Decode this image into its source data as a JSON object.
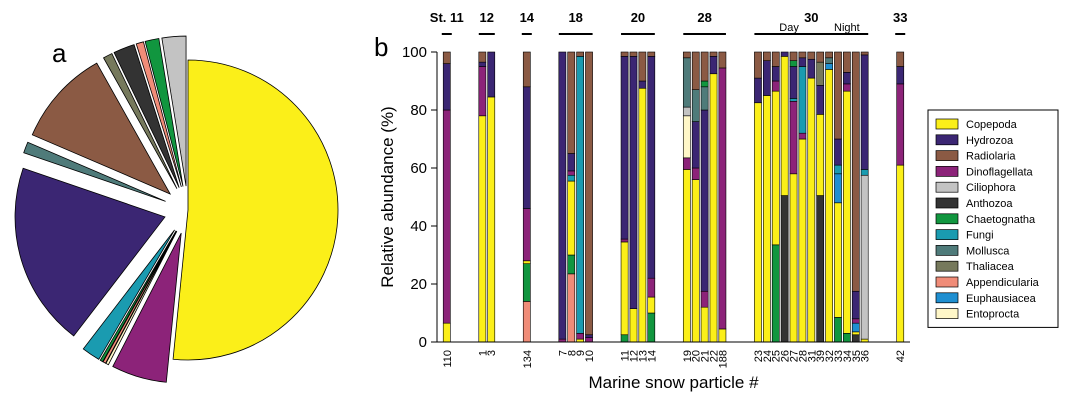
{
  "panels": {
    "a": "a",
    "b": "b"
  },
  "colors": {
    "Copepoda": "#fbef19",
    "Hydrozoa": "#3b2673",
    "Radiolaria": "#8b5a44",
    "Dinoflagellata": "#8c2379",
    "Ciliophora": "#c3c3c3",
    "Anthozoa": "#333333",
    "Chaetognatha": "#11963f",
    "Fungi": "#1a9bb0",
    "Mollusca": "#4f7b7a",
    "Thaliacea": "#76795c",
    "Appendicularia": "#f08c78",
    "Euphausiacea": "#1f8fd1",
    "Entoprocta": "#fff7c8"
  },
  "chart_data": [
    {
      "type": "pie",
      "panel": "a",
      "slices": [
        {
          "name": "Copepoda",
          "value": 52.0
        },
        {
          "name": "Dinoflagellata",
          "value": 6.0
        },
        {
          "name": "Entoprocta",
          "value": 0.3
        },
        {
          "name": "Appendicularia",
          "value": 0.3
        },
        {
          "name": "Chaetognatha",
          "value": 0.3
        },
        {
          "name": "Fungi",
          "value": 2.0
        },
        {
          "name": "Hydrozoa",
          "value": 20.0
        },
        {
          "name": "Mollusca",
          "value": 1.2
        },
        {
          "name": "Radiolaria",
          "value": 10.5
        },
        {
          "name": "Thaliacea",
          "value": 1.0
        },
        {
          "name": "Anthozoa",
          "value": 2.3
        },
        {
          "name": "Appendicularia",
          "value": 0.8
        },
        {
          "name": "Chaetognatha",
          "value": 1.5
        },
        {
          "name": "Ciliophora",
          "value": 2.6
        }
      ]
    },
    {
      "type": "bar",
      "stacked": true,
      "panel": "b",
      "ylabel": "Relative abundance (%)",
      "xlabel": "Marine snow particle #",
      "ylim": [
        0,
        100
      ],
      "yticks": [
        0,
        20,
        40,
        60,
        80,
        100
      ],
      "legend_position": "right",
      "legend": [
        "Copepoda",
        "Hydrozoa",
        "Radiolaria",
        "Dinoflagellata",
        "Ciliophora",
        "Anthozoa",
        "Chaetognatha",
        "Fungi",
        "Mollusca",
        "Thaliacea",
        "Appendicularia",
        "Euphausiacea",
        "Entoprocta"
      ],
      "stations": [
        {
          "label": "St. 11",
          "particles": [
            "110"
          ]
        },
        {
          "label": "12",
          "particles": [
            "1",
            "3"
          ]
        },
        {
          "label": "14",
          "particles": [
            "134"
          ]
        },
        {
          "label": "18",
          "particles": [
            "7",
            "8",
            "9",
            "10"
          ]
        },
        {
          "label": "20",
          "particles": [
            "11",
            "12",
            "13",
            "14"
          ]
        },
        {
          "label": "28",
          "particles": [
            "19",
            "20",
            "21",
            "22",
            "188"
          ]
        },
        {
          "label": "30",
          "particles": [
            "23",
            "24",
            "25",
            "26",
            "27",
            "28",
            "31",
            "39",
            "32",
            "33",
            "34",
            "35",
            "36"
          ],
          "subgroups": [
            {
              "label": "Day",
              "from": 0,
              "to": 7
            },
            {
              "label": "Night",
              "from": 8,
              "to": 12
            }
          ]
        },
        {
          "label": "33",
          "particles": [
            "42"
          ]
        }
      ],
      "bars": [
        {
          "particle": "110",
          "segments": [
            [
              "Copepoda",
              6.5
            ],
            [
              "Dinoflagellata",
              73.5
            ],
            [
              "Hydrozoa",
              16
            ],
            [
              "Radiolaria",
              4
            ]
          ]
        },
        {
          "particle": "1",
          "segments": [
            [
              "Copepoda",
              78
            ],
            [
              "Dinoflagellata",
              17
            ],
            [
              "Hydrozoa",
              1.5
            ],
            [
              "Radiolaria",
              3.5
            ]
          ]
        },
        {
          "particle": "3",
          "segments": [
            [
              "Copepoda",
              84.5
            ],
            [
              "Hydrozoa",
              15.5
            ]
          ]
        },
        {
          "particle": "134",
          "segments": [
            [
              "Appendicularia",
              14
            ],
            [
              "Chaetognatha",
              13
            ],
            [
              "Copepoda",
              1
            ],
            [
              "Dinoflagellata",
              18
            ],
            [
              "Hydrozoa",
              42
            ],
            [
              "Radiolaria",
              12
            ]
          ]
        },
        {
          "particle": "7",
          "segments": [
            [
              "Dinoflagellata",
              1
            ],
            [
              "Hydrozoa",
              99
            ]
          ]
        },
        {
          "particle": "8",
          "segments": [
            [
              "Appendicularia",
              23.5
            ],
            [
              "Chaetognatha",
              6.5
            ],
            [
              "Copepoda",
              25.5
            ],
            [
              "Fungi",
              2
            ],
            [
              "Dinoflagellata",
              1.5
            ],
            [
              "Hydrozoa",
              6
            ],
            [
              "Radiolaria",
              35
            ]
          ]
        },
        {
          "particle": "9",
          "segments": [
            [
              "Copepoda",
              1
            ],
            [
              "Dinoflagellata",
              2
            ],
            [
              "Fungi",
              95.5
            ],
            [
              "Radiolaria",
              1.5
            ]
          ]
        },
        {
          "particle": "10",
          "segments": [
            [
              "Dinoflagellata",
              1.5
            ],
            [
              "Hydrozoa",
              1
            ],
            [
              "Radiolaria",
              97.5
            ]
          ]
        },
        {
          "particle": "11",
          "segments": [
            [
              "Chaetognatha",
              2.5
            ],
            [
              "Copepoda",
              32
            ],
            [
              "Dinoflagellata",
              1
            ],
            [
              "Hydrozoa",
              63
            ],
            [
              "Radiolaria",
              1.5
            ]
          ]
        },
        {
          "particle": "12",
          "segments": [
            [
              "Copepoda",
              11.5
            ],
            [
              "Hydrozoa",
              87
            ],
            [
              "Radiolaria",
              1.5
            ]
          ]
        },
        {
          "particle": "13",
          "segments": [
            [
              "Copepoda",
              87.5
            ],
            [
              "Hydrozoa",
              2.5
            ],
            [
              "Radiolaria",
              10
            ]
          ]
        },
        {
          "particle": "14",
          "segments": [
            [
              "Chaetognatha",
              10
            ],
            [
              "Copepoda",
              5.5
            ],
            [
              "Dinoflagellata",
              6.5
            ],
            [
              "Hydrozoa",
              76.5
            ],
            [
              "Radiolaria",
              1.5
            ]
          ]
        },
        {
          "particle": "19",
          "segments": [
            [
              "Copepoda",
              59.5
            ],
            [
              "Dinoflagellata",
              4
            ],
            [
              "Entoprocta",
              14.5
            ],
            [
              "Ciliophora",
              3
            ],
            [
              "Mollusca",
              17
            ],
            [
              "Radiolaria",
              2
            ]
          ]
        },
        {
          "particle": "20",
          "segments": [
            [
              "Copepoda",
              56
            ],
            [
              "Dinoflagellata",
              4
            ],
            [
              "Hydrozoa",
              16
            ],
            [
              "Mollusca",
              11
            ],
            [
              "Radiolaria",
              13
            ]
          ]
        },
        {
          "particle": "21",
          "segments": [
            [
              "Copepoda",
              12
            ],
            [
              "Dinoflagellata",
              5.5
            ],
            [
              "Hydrozoa",
              62.5
            ],
            [
              "Mollusca",
              8
            ],
            [
              "Chaetognatha",
              2
            ],
            [
              "Radiolaria",
              10
            ]
          ]
        },
        {
          "particle": "22",
          "segments": [
            [
              "Copepoda",
              92.5
            ],
            [
              "Hydrozoa",
              6
            ],
            [
              "Radiolaria",
              1.5
            ]
          ]
        },
        {
          "particle": "188",
          "segments": [
            [
              "Copepoda",
              4.5
            ],
            [
              "Dinoflagellata",
              90
            ],
            [
              "Radiolaria",
              5.5
            ]
          ]
        },
        {
          "particle": "23",
          "segments": [
            [
              "Copepoda",
              82.5
            ],
            [
              "Hydrozoa",
              8.5
            ],
            [
              "Radiolaria",
              9
            ]
          ]
        },
        {
          "particle": "24",
          "segments": [
            [
              "Copepoda",
              85
            ],
            [
              "Hydrozoa",
              12
            ],
            [
              "Radiolaria",
              3
            ]
          ]
        },
        {
          "particle": "25",
          "segments": [
            [
              "Chaetognatha",
              33.5
            ],
            [
              "Copepoda",
              53
            ],
            [
              "Dinoflagellata",
              3.5
            ],
            [
              "Hydrozoa",
              5
            ],
            [
              "Radiolaria",
              5
            ]
          ]
        },
        {
          "particle": "26",
          "segments": [
            [
              "Anthozoa",
              50.5
            ],
            [
              "Copepoda",
              48
            ],
            [
              "Hydrozoa",
              1.5
            ]
          ]
        },
        {
          "particle": "27",
          "segments": [
            [
              "Copepoda",
              58
            ],
            [
              "Dinoflagellata",
              25
            ],
            [
              "Fungi",
              1
            ],
            [
              "Hydrozoa",
              11
            ],
            [
              "Chaetognatha",
              2
            ],
            [
              "Radiolaria",
              3
            ]
          ]
        },
        {
          "particle": "28",
          "segments": [
            [
              "Copepoda",
              70
            ],
            [
              "Dinoflagellata",
              2
            ],
            [
              "Fungi",
              23
            ],
            [
              "Hydrozoa",
              3
            ],
            [
              "Radiolaria",
              2
            ]
          ]
        },
        {
          "particle": "31",
          "segments": [
            [
              "Copepoda",
              91
            ],
            [
              "Hydrozoa",
              6.5
            ],
            [
              "Radiolaria",
              2.5
            ]
          ]
        },
        {
          "particle": "39",
          "segments": [
            [
              "Anthozoa",
              50.5
            ],
            [
              "Copepoda",
              28
            ],
            [
              "Hydrozoa",
              10
            ],
            [
              "Thaliacea",
              8
            ],
            [
              "Radiolaria",
              3.5
            ]
          ]
        },
        {
          "particle": "32",
          "segments": [
            [
              "Copepoda",
              94
            ],
            [
              "Euphausiacea",
              2
            ],
            [
              "Mollusca",
              2
            ],
            [
              "Radiolaria",
              2
            ]
          ]
        },
        {
          "particle": "33",
          "segments": [
            [
              "Chaetognatha",
              8.5
            ],
            [
              "Copepoda",
              39.5
            ],
            [
              "Euphausiacea",
              10
            ],
            [
              "Fungi",
              3
            ],
            [
              "Hydrozoa",
              9
            ],
            [
              "Radiolaria",
              30
            ]
          ]
        },
        {
          "particle": "34",
          "segments": [
            [
              "Chaetognatha",
              3
            ],
            [
              "Copepoda",
              83.5
            ],
            [
              "Dinoflagellata",
              2.5
            ],
            [
              "Hydrozoa",
              4
            ],
            [
              "Radiolaria",
              7
            ]
          ]
        },
        {
          "particle": "35",
          "segments": [
            [
              "Anthozoa",
              2.5
            ],
            [
              "Copepoda",
              1
            ],
            [
              "Euphausiacea",
              3
            ],
            [
              "Dinoflagellata",
              1.5
            ],
            [
              "Hydrozoa",
              9.5
            ],
            [
              "Radiolaria",
              82.5
            ]
          ]
        },
        {
          "particle": "36",
          "segments": [
            [
              "Copepoda",
              1
            ],
            [
              "Ciliophora",
              56.5
            ],
            [
              "Fungi",
              2
            ],
            [
              "Hydrozoa",
              39.5
            ],
            [
              "Radiolaria",
              1
            ]
          ]
        },
        {
          "particle": "42",
          "segments": [
            [
              "Copepoda",
              61
            ],
            [
              "Dinoflagellata",
              28
            ],
            [
              "Hydrozoa",
              6
            ],
            [
              "Radiolaria",
              5
            ]
          ]
        }
      ]
    }
  ]
}
